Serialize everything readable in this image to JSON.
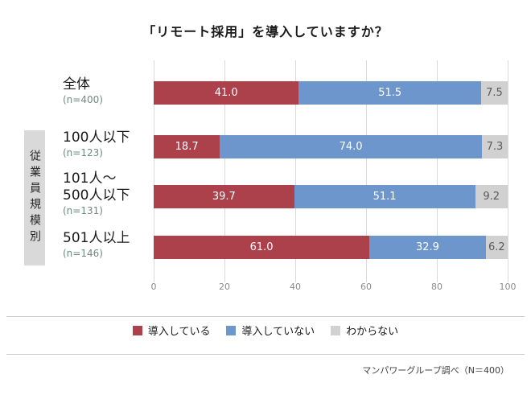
{
  "title": "「リモート採用」を導入していますか？",
  "side_axis_label": "従業員規模別",
  "footer_note": "マンパワーグループ調べ（N＝400）",
  "colors": {
    "series_red": "#ad414b",
    "series_blue": "#6d96cc",
    "series_gray": "#d1d1d1",
    "gridline": "#d9d9d9",
    "sample_size_text": "#6e8b7e",
    "gray_segment_text": "#595959"
  },
  "chart_data": {
    "type": "bar",
    "orientation": "horizontal",
    "stacked": true,
    "title": "「リモート採用」を導入していますか？",
    "categories": [
      "全体",
      "100人以下",
      "101人～500人以下",
      "501人以上"
    ],
    "category_lines": [
      [
        "全体"
      ],
      [
        "100人以下"
      ],
      [
        "101人～",
        "500人以下"
      ],
      [
        "501人以上"
      ]
    ],
    "sample_sizes": [
      "(n=400)",
      "(n=123)",
      "(n=131)",
      "(n=146)"
    ],
    "series": [
      {
        "name": "導入している",
        "color": "#ad414b",
        "values": [
          41.0,
          18.7,
          39.7,
          61.0
        ]
      },
      {
        "name": "導入していない",
        "color": "#6d96cc",
        "values": [
          51.5,
          74.0,
          51.1,
          32.9
        ]
      },
      {
        "name": "わからない",
        "color": "#d1d1d1",
        "values": [
          7.5,
          7.3,
          9.2,
          6.2
        ]
      }
    ],
    "xlim": [
      0,
      100
    ],
    "x_ticks": [
      0,
      20,
      40,
      60,
      80,
      100
    ],
    "grid": true,
    "legend_position": "bottom",
    "value_label_decimals": 1
  }
}
